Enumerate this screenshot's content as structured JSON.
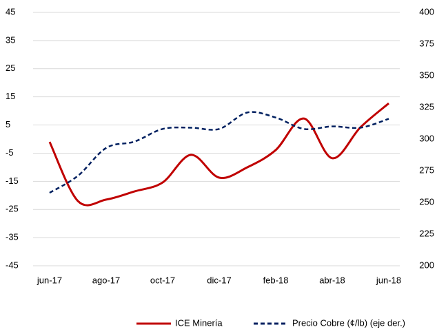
{
  "chart_data": {
    "type": "line",
    "categories": [
      "jun-17",
      null,
      "ago-17",
      null,
      "oct-17",
      null,
      "dic-17",
      null,
      "feb-18",
      null,
      "abr-18",
      null,
      "jun-18"
    ],
    "series": [
      {
        "name": "ICE Minería",
        "color": "#c00000",
        "dash": false,
        "values": [
          -1,
          -22,
          -21.5,
          -18.6,
          -15.4,
          -5.6,
          -13.7,
          -10,
          -3.9,
          7.3,
          -6.8,
          4.2,
          12.7
        ]
      },
      {
        "name": "Precio Cobre (¢/lb) (eje der.)",
        "color": "#002060",
        "dash": true,
        "axis": "y2",
        "values": [
          257.6,
          271,
          293,
          298,
          308,
          309,
          308,
          321,
          317,
          308,
          310,
          309,
          316
        ]
      }
    ],
    "ylim": [
      -45,
      45
    ],
    "yticks": [
      -45,
      -35,
      -25,
      -15,
      -5,
      5,
      15,
      25,
      35,
      45
    ],
    "y2lim": [
      200,
      400
    ],
    "y2ticks": [
      200,
      225,
      250,
      275,
      300,
      325,
      350,
      375,
      400
    ],
    "grid": true,
    "legend": "bottom"
  }
}
